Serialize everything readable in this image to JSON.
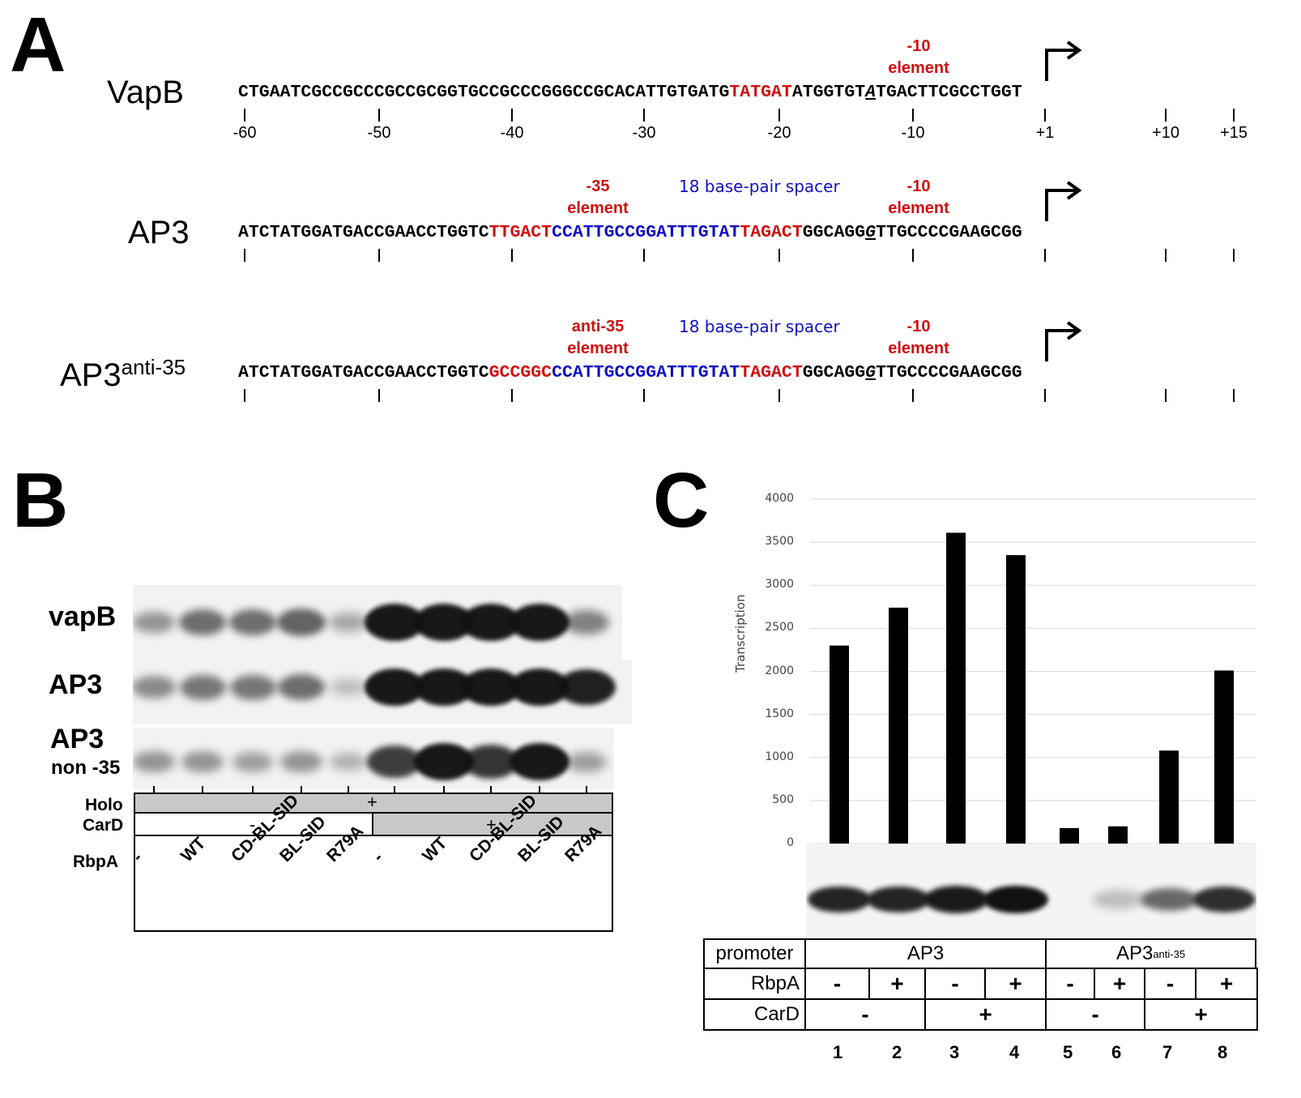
{
  "panels": {
    "a": "A",
    "b": "B",
    "c": "C"
  },
  "panel_a": {
    "promoters": [
      {
        "name": "VapB",
        "seq_parts": [
          {
            "t": "CTGAATCGCCGCCCGCCGCGGTGCCGCCCGGGCCGCACATTGTGATG",
            "c": "k"
          },
          {
            "t": "TATGAT",
            "c": "r"
          },
          {
            "t": "ATGGTGT",
            "c": "k"
          },
          {
            "t": "A",
            "c": "tss"
          },
          {
            "t": "TGACTTCGCCTGGT",
            "c": "k"
          }
        ]
      },
      {
        "name": "AP3",
        "seq_parts": [
          {
            "t": "ATCTATGGATGACCGAACCTGGTC",
            "c": "k"
          },
          {
            "t": "TTGACT",
            "c": "r"
          },
          {
            "t": "CCATTGCCGGATTTGTAT",
            "c": "b"
          },
          {
            "t": "TAGACT",
            "c": "r"
          },
          {
            "t": "GGCAGG",
            "c": "k"
          },
          {
            "t": "G",
            "c": "tss"
          },
          {
            "t": "TTGCCCCGAAGCGG",
            "c": "k"
          }
        ]
      },
      {
        "name": "AP3",
        "name_sup": "anti-35",
        "seq_parts": [
          {
            "t": "ATCTATGGATGACCGAACCTGGTC",
            "c": "k"
          },
          {
            "t": "GCCGGC",
            "c": "r"
          },
          {
            "t": "CCATTGCCGGATTTGTAT",
            "c": "b"
          },
          {
            "t": "TAGACT",
            "c": "r"
          },
          {
            "t": "GGCAGG",
            "c": "k"
          },
          {
            "t": "G",
            "c": "tss"
          },
          {
            "t": "TTGCCCCGAAGCGG",
            "c": "k"
          }
        ]
      }
    ],
    "annotations": {
      "m10_line1": "-10",
      "element": "element",
      "m35_line1": "-35",
      "anti35_line1": "anti-35",
      "spacer": "18 base-pair spacer"
    },
    "positions": [
      "-60",
      "-50",
      "-40",
      "-30",
      "-20",
      "-10",
      "+1",
      "+10",
      "+15"
    ]
  },
  "panel_b": {
    "gel_labels": {
      "vapb": "vapB",
      "ap3": "AP3",
      "ap3n_1": "AP3",
      "ap3n_2": "non -35"
    },
    "rows": {
      "holo": "Holo",
      "card": "CarD",
      "rbpa": "RbpA"
    },
    "holo_value": "+",
    "card_minus": "-",
    "card_plus": "+",
    "lanes": [
      "-",
      "WT",
      "CD-BL-SID",
      "BL-SID",
      "R79A",
      "-",
      "WT",
      "CD-BL-SID",
      "BL-SID",
      "R79A"
    ],
    "band_intensity": {
      "vapB": [
        0.35,
        0.55,
        0.55,
        0.6,
        0.25,
        1.0,
        1.0,
        1.0,
        1.0,
        0.45
      ],
      "AP3": [
        0.4,
        0.5,
        0.5,
        0.55,
        0.15,
        1.0,
        1.0,
        1.0,
        1.0,
        0.95
      ],
      "AP3non": [
        0.35,
        0.35,
        0.3,
        0.35,
        0.2,
        0.8,
        1.0,
        0.85,
        1.0,
        0.3
      ]
    }
  },
  "chart_data": {
    "type": "bar",
    "title": "",
    "ylabel": "Transcription",
    "xlabel": "",
    "ylim": [
      0,
      4000
    ],
    "yticks": [
      "0",
      "500",
      "1000",
      "1500",
      "2000",
      "2500",
      "3000",
      "3500",
      "4000"
    ],
    "categories": [
      "1",
      "2",
      "3",
      "4",
      "5",
      "6",
      "7",
      "8"
    ],
    "values": [
      2300,
      2740,
      3610,
      3350,
      180,
      200,
      1080,
      2010
    ],
    "grid": true,
    "bar_color": "#000000",
    "gel_intensity": [
      0.9,
      0.9,
      0.95,
      1.0,
      0.0,
      0.1,
      0.55,
      0.85
    ]
  },
  "panel_c_table": {
    "promoter_label": "promoter",
    "rbpa_label": "RbpA",
    "card_label": "CarD",
    "ap3": "AP3",
    "ap3anti": "AP3",
    "ap3anti_sup": "anti-35",
    "rbpa": [
      "-",
      "+",
      "-",
      "+",
      "-",
      "+",
      "-",
      "+"
    ],
    "card": [
      "-",
      "+",
      "-",
      "+"
    ]
  },
  "colors": {
    "red": "#d01010",
    "blue": "#1010c0"
  }
}
